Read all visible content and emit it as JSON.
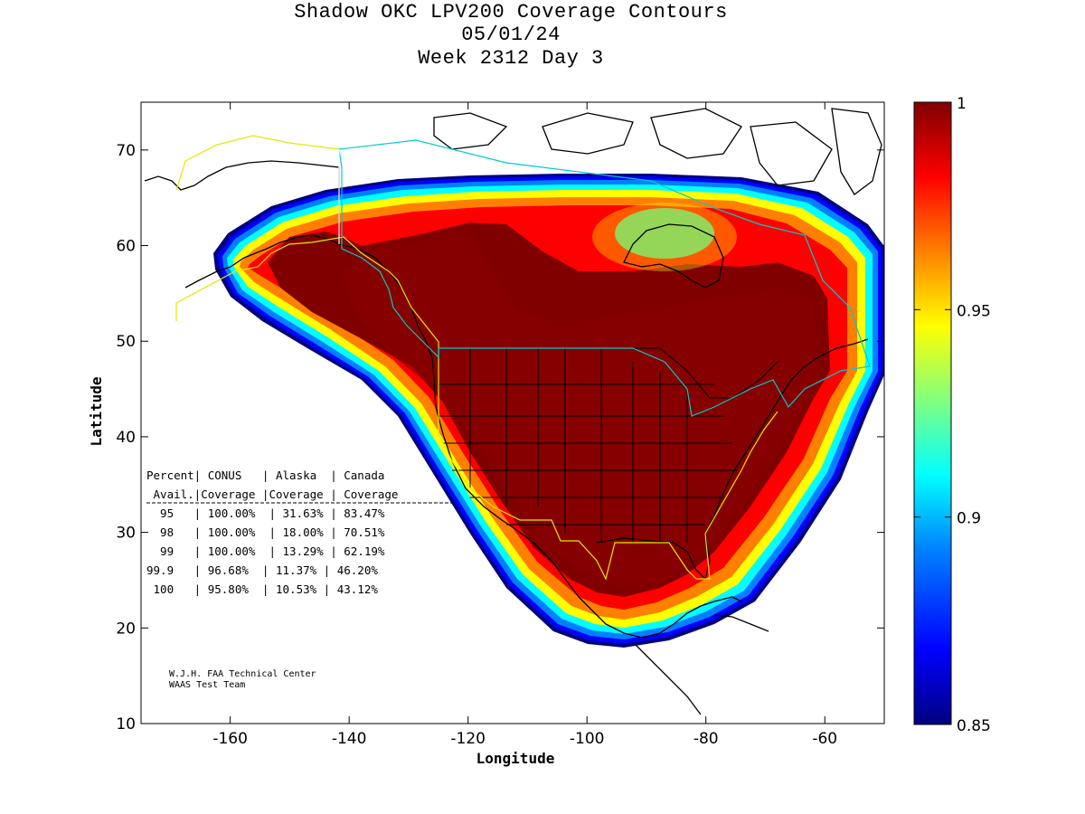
{
  "title": {
    "line1": "Shadow OKC LPV200 Coverage Contours",
    "line2": "05/01/24",
    "line3": "Week 2312 Day 3"
  },
  "axes": {
    "xlabel": "Longitude",
    "ylabel": "Latitude",
    "x_ticks": [
      "-160",
      "-140",
      "-120",
      "-100",
      "-80",
      "-60"
    ],
    "y_ticks": [
      "10",
      "20",
      "30",
      "40",
      "50",
      "60",
      "70"
    ]
  },
  "colorbar": {
    "ticks": [
      "1",
      "0.95",
      "0.9",
      "0.85"
    ],
    "colors": [
      "#000080",
      "#0000ff",
      "#0080ff",
      "#00ffff",
      "#80ff80",
      "#ffff00",
      "#ff8000",
      "#ff0000",
      "#800000"
    ]
  },
  "stats_table": {
    "header1": "Percent| CONUS   | Alaska  | Canada",
    "header2": " Avail.|Coverage |Coverage | Coverage",
    "divider": "-----------------------------------------",
    "rows": [
      "  95   | 100.00%  | 31.63% | 83.47%",
      "  98   | 100.00%  | 18.00% | 70.51%",
      "  99   | 100.00%  | 13.29% | 62.19%",
      "99.9   | 96.68%  | 11.37% | 46.20%",
      " 100   | 95.80%  | 10.53% | 43.12%"
    ]
  },
  "credits": {
    "line1": "W.J.H. FAA Technical Center",
    "line2": "WAAS Test Team"
  },
  "chart_data": {
    "type": "heatmap",
    "title": "Shadow OKC LPV200 Coverage Contours",
    "xlabel": "Longitude",
    "ylabel": "Latitude",
    "xlim": [
      -175,
      -50
    ],
    "ylim": [
      10,
      75
    ],
    "zlim": [
      0.85,
      1
    ],
    "colorbar_ticks": [
      0.85,
      0.9,
      0.95,
      1
    ],
    "colormap": "jet",
    "coverage_table": {
      "columns": [
        "Percent Avail.",
        "CONUS Coverage",
        "Alaska Coverage",
        "Canada Coverage"
      ],
      "rows": [
        [
          "95",
          "100.00%",
          "31.63%",
          "83.47%"
        ],
        [
          "98",
          "100.00%",
          "18.00%",
          "70.51%"
        ],
        [
          "99",
          "100.00%",
          "13.29%",
          "62.19%"
        ],
        [
          "99.9",
          "96.68%",
          "11.37%",
          "46.20%"
        ],
        [
          "100",
          "95.80%",
          "10.53%",
          "43.12%"
        ]
      ]
    }
  }
}
